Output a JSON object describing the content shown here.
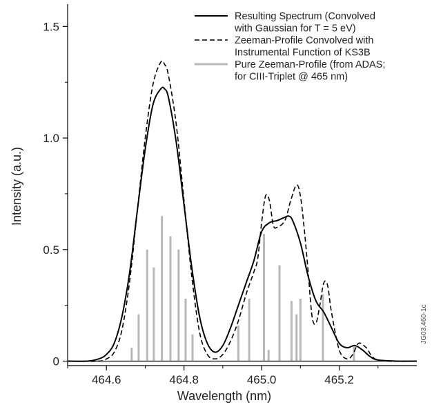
{
  "chart_data": {
    "type": "line",
    "title": "",
    "xlabel": "Wavelength (nm)",
    "ylabel": "Intensity (a.u.)",
    "xlim": [
      464.5,
      465.4
    ],
    "ylim": [
      -0.02,
      1.6
    ],
    "x_ticks": [
      464.6,
      464.8,
      465.0,
      465.2
    ],
    "x_tick_labels": [
      "464.6",
      "464.8",
      "465.0",
      "465.2"
    ],
    "y_ticks": [
      0,
      0.5,
      1.0,
      1.5
    ],
    "y_tick_labels": [
      "0",
      "0.5",
      "1.0",
      "1.5"
    ],
    "grid": false,
    "legend_position": "top-right",
    "side_label": "JG03.460-1c",
    "series": [
      {
        "name": "Resulting Spectrum (Convolved with Gaussian for T = 5 eV)",
        "legend_lines": [
          "Resulting Spectrum (Convolved",
          "with Gaussian for T = 5 eV)"
        ],
        "style": "solid",
        "color": "#000000",
        "x": [
          464.5,
          464.55,
          464.58,
          464.6,
          464.62,
          464.64,
          464.66,
          464.68,
          464.7,
          464.72,
          464.74,
          464.75,
          464.76,
          464.78,
          464.8,
          464.82,
          464.84,
          464.86,
          464.88,
          464.9,
          464.92,
          464.94,
          464.96,
          464.98,
          465.0,
          465.02,
          465.04,
          465.06,
          465.07,
          465.08,
          465.1,
          465.12,
          465.14,
          465.16,
          465.18,
          465.2,
          465.22,
          465.24,
          465.26,
          465.28,
          465.3,
          465.35,
          465.4
        ],
        "y": [
          0,
          0.0,
          0.01,
          0.03,
          0.08,
          0.2,
          0.4,
          0.68,
          0.95,
          1.15,
          1.22,
          1.22,
          1.18,
          0.98,
          0.7,
          0.42,
          0.2,
          0.08,
          0.04,
          0.07,
          0.15,
          0.25,
          0.35,
          0.45,
          0.58,
          0.62,
          0.63,
          0.645,
          0.65,
          0.63,
          0.53,
          0.38,
          0.27,
          0.22,
          0.15,
          0.08,
          0.06,
          0.07,
          0.05,
          0.02,
          0.005,
          0,
          0
        ]
      },
      {
        "name": "Zeeman-Profile Convolved with Instrumental Function of KS3B",
        "legend_lines": [
          "Zeeman-Profile Convolved with",
          "Instrumental Function of KS3B"
        ],
        "style": "dashed",
        "color": "#000000",
        "x": [
          464.5,
          464.58,
          464.6,
          464.62,
          464.64,
          464.66,
          464.68,
          464.7,
          464.72,
          464.74,
          464.75,
          464.76,
          464.78,
          464.8,
          464.82,
          464.84,
          464.86,
          464.88,
          464.9,
          464.92,
          464.94,
          464.96,
          464.98,
          464.99,
          465.0,
          465.01,
          465.02,
          465.03,
          465.04,
          465.06,
          465.075,
          465.09,
          465.1,
          465.11,
          465.12,
          465.13,
          465.14,
          465.15,
          465.16,
          465.17,
          465.18,
          465.2,
          465.22,
          465.235,
          465.25,
          465.27,
          465.3,
          465.4
        ],
        "y": [
          0,
          0.0,
          0.01,
          0.04,
          0.14,
          0.36,
          0.68,
          1.0,
          1.24,
          1.34,
          1.33,
          1.28,
          1.06,
          0.72,
          0.38,
          0.13,
          0.03,
          0.01,
          0.03,
          0.09,
          0.18,
          0.3,
          0.4,
          0.46,
          0.62,
          0.74,
          0.72,
          0.61,
          0.6,
          0.63,
          0.72,
          0.79,
          0.74,
          0.59,
          0.4,
          0.2,
          0.17,
          0.25,
          0.35,
          0.34,
          0.22,
          0.05,
          0.01,
          0.03,
          0.08,
          0.06,
          0.005,
          0
        ]
      },
      {
        "name": "Pure Zeeman-Profile (from ADAS; for CIII-Triplet @ 465 nm)",
        "legend_lines": [
          "Pure Zeeman-Profile (from ADAS;",
          "for CIII-Triplet @ 465 nm)"
        ],
        "style": "sticks",
        "color": "#b8b8b8",
        "x": [
          464.665,
          464.683,
          464.705,
          464.722,
          464.743,
          464.765,
          464.786,
          464.804,
          464.822,
          464.94,
          464.968,
          465.006,
          465.018,
          465.046,
          465.077,
          465.09,
          465.1,
          465.158,
          465.238
        ],
        "y": [
          0.06,
          0.21,
          0.5,
          0.42,
          0.65,
          0.56,
          0.5,
          0.28,
          0.12,
          0.16,
          0.28,
          0.57,
          0.05,
          0.43,
          0.27,
          0.21,
          0.28,
          0.3,
          0.07
        ]
      }
    ]
  }
}
